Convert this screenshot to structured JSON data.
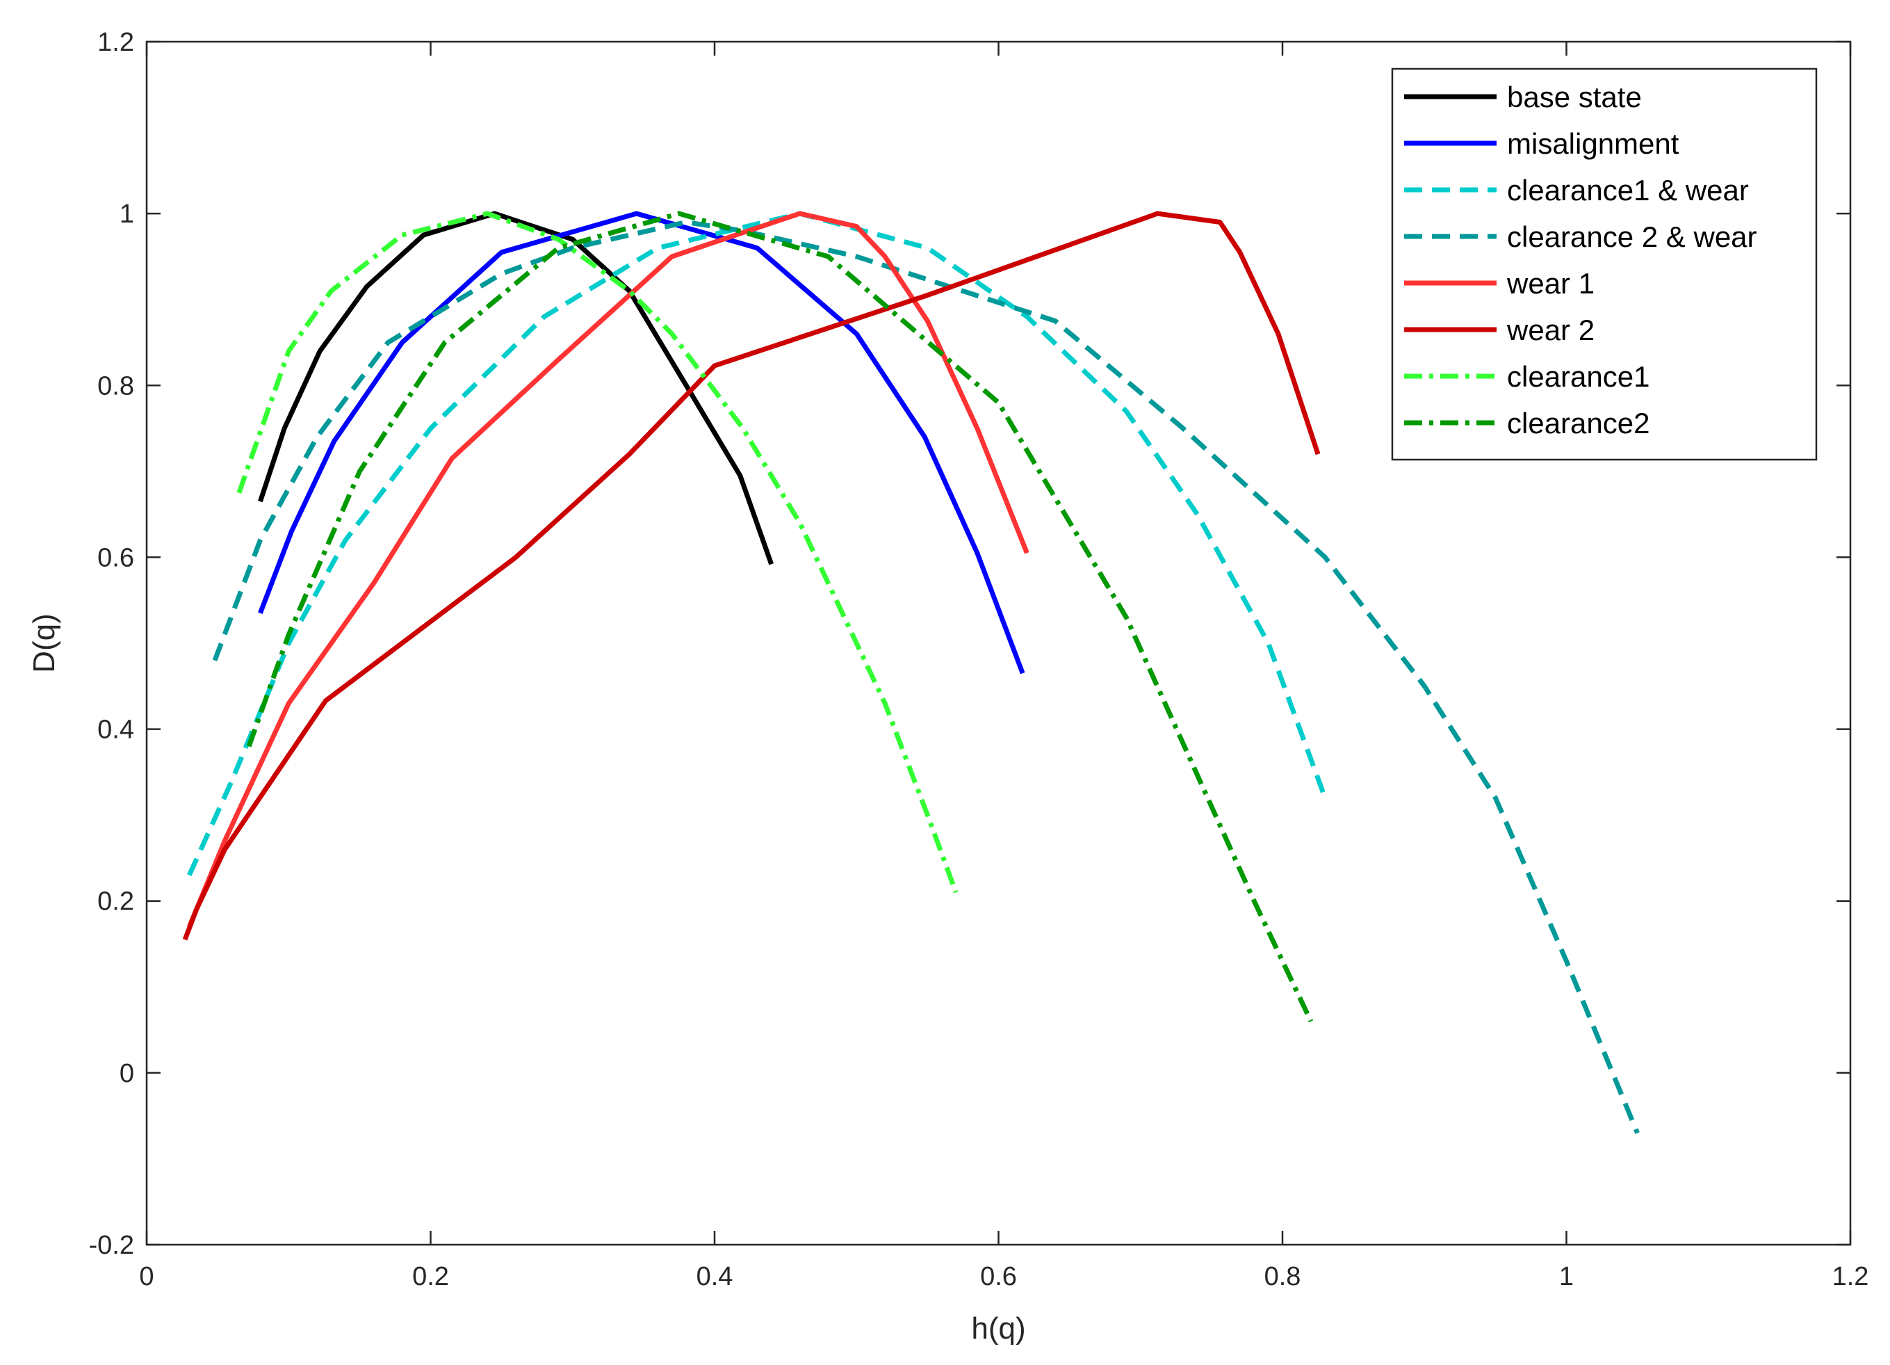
{
  "chart_data": {
    "type": "line",
    "title": "",
    "xlabel": "h(q)",
    "ylabel": "D(q)",
    "xlim": [
      0,
      1.2
    ],
    "ylim": [
      -0.2,
      1.2
    ],
    "xticks": [
      0,
      0.2,
      0.4,
      0.6,
      0.8,
      1,
      1.2
    ],
    "xtick_labels": [
      "0",
      "0.2",
      "0.4",
      "0.6",
      "0.8",
      "1",
      "1.2"
    ],
    "yticks": [
      -0.2,
      0,
      0.2,
      0.4,
      0.6,
      0.8,
      1,
      1.2
    ],
    "ytick_labels": [
      "-0.2",
      "0",
      "0.2",
      "0.4",
      "0.6",
      "0.8",
      "1",
      "1.2"
    ],
    "grid": false,
    "legend_position": "top-right",
    "series": [
      {
        "name": "base state",
        "color": "#000000",
        "dash": "solid",
        "points": [
          [
            0.08,
            0.665
          ],
          [
            0.097,
            0.75
          ],
          [
            0.122,
            0.84
          ],
          [
            0.155,
            0.915
          ],
          [
            0.195,
            0.975
          ],
          [
            0.245,
            1.0
          ],
          [
            0.3,
            0.97
          ],
          [
            0.34,
            0.91
          ],
          [
            0.38,
            0.8
          ],
          [
            0.418,
            0.695
          ],
          [
            0.44,
            0.592
          ]
        ]
      },
      {
        "name": "misalignment",
        "color": "#0000ff",
        "dash": "solid",
        "points": [
          [
            0.08,
            0.535
          ],
          [
            0.102,
            0.63
          ],
          [
            0.132,
            0.735
          ],
          [
            0.18,
            0.85
          ],
          [
            0.25,
            0.955
          ],
          [
            0.345,
            1.0
          ],
          [
            0.43,
            0.96
          ],
          [
            0.5,
            0.86
          ],
          [
            0.548,
            0.74
          ],
          [
            0.585,
            0.605
          ],
          [
            0.617,
            0.465
          ]
        ]
      },
      {
        "name": "clearance1 & wear",
        "color": "#00cccc",
        "dash": "dash",
        "points": [
          [
            0.03,
            0.23
          ],
          [
            0.06,
            0.34
          ],
          [
            0.1,
            0.5
          ],
          [
            0.14,
            0.62
          ],
          [
            0.2,
            0.75
          ],
          [
            0.28,
            0.88
          ],
          [
            0.36,
            0.96
          ],
          [
            0.46,
            1.0
          ],
          [
            0.55,
            0.96
          ],
          [
            0.62,
            0.88
          ],
          [
            0.69,
            0.77
          ],
          [
            0.74,
            0.65
          ],
          [
            0.79,
            0.5
          ],
          [
            0.83,
            0.32
          ]
        ]
      },
      {
        "name": "clearance 2 & wear",
        "color": "#009999",
        "dash": "dash",
        "points": [
          [
            0.048,
            0.48
          ],
          [
            0.08,
            0.62
          ],
          [
            0.12,
            0.74
          ],
          [
            0.17,
            0.85
          ],
          [
            0.25,
            0.93
          ],
          [
            0.3,
            0.96
          ],
          [
            0.38,
            0.99
          ],
          [
            0.42,
            0.98
          ],
          [
            0.5,
            0.95
          ],
          [
            0.64,
            0.875
          ],
          [
            0.73,
            0.75
          ],
          [
            0.83,
            0.6
          ],
          [
            0.9,
            0.45
          ],
          [
            0.95,
            0.32
          ],
          [
            1.0,
            0.13
          ],
          [
            1.05,
            -0.07
          ]
        ]
      },
      {
        "name": "wear 1",
        "color": "#ff3333",
        "dash": "solid",
        "points": [
          [
            0.03,
            0.17
          ],
          [
            0.055,
            0.27
          ],
          [
            0.1,
            0.43
          ],
          [
            0.16,
            0.57
          ],
          [
            0.215,
            0.715
          ],
          [
            0.29,
            0.83
          ],
          [
            0.37,
            0.95
          ],
          [
            0.46,
            1.0
          ],
          [
            0.5,
            0.985
          ],
          [
            0.52,
            0.95
          ],
          [
            0.55,
            0.875
          ],
          [
            0.585,
            0.75
          ],
          [
            0.62,
            0.605
          ]
        ]
      },
      {
        "name": "wear 2",
        "color": "#cc0000",
        "dash": "solid",
        "points": [
          [
            0.027,
            0.155
          ],
          [
            0.035,
            0.19
          ],
          [
            0.055,
            0.26
          ],
          [
            0.126,
            0.433
          ],
          [
            0.26,
            0.6
          ],
          [
            0.34,
            0.72
          ],
          [
            0.4,
            0.823
          ],
          [
            0.55,
            0.905
          ],
          [
            0.712,
            1.0
          ],
          [
            0.756,
            0.99
          ],
          [
            0.77,
            0.955
          ],
          [
            0.797,
            0.86
          ],
          [
            0.825,
            0.72
          ]
        ]
      },
      {
        "name": "clearance1",
        "color": "#33ff33",
        "dash": "dashdot",
        "points": [
          [
            0.065,
            0.675
          ],
          [
            0.1,
            0.84
          ],
          [
            0.13,
            0.91
          ],
          [
            0.18,
            0.975
          ],
          [
            0.24,
            1.0
          ],
          [
            0.29,
            0.97
          ],
          [
            0.34,
            0.91
          ],
          [
            0.37,
            0.86
          ],
          [
            0.42,
            0.75
          ],
          [
            0.46,
            0.64
          ],
          [
            0.52,
            0.43
          ],
          [
            0.55,
            0.3
          ],
          [
            0.57,
            0.21
          ]
        ]
      },
      {
        "name": "clearance2",
        "color": "#009900",
        "dash": "dashdot",
        "points": [
          [
            0.072,
            0.38
          ],
          [
            0.1,
            0.51
          ],
          [
            0.15,
            0.7
          ],
          [
            0.21,
            0.85
          ],
          [
            0.29,
            0.96
          ],
          [
            0.375,
            1.0
          ],
          [
            0.48,
            0.95
          ],
          [
            0.6,
            0.78
          ],
          [
            0.69,
            0.53
          ],
          [
            0.75,
            0.31
          ],
          [
            0.78,
            0.2
          ],
          [
            0.82,
            0.06
          ]
        ]
      }
    ]
  }
}
